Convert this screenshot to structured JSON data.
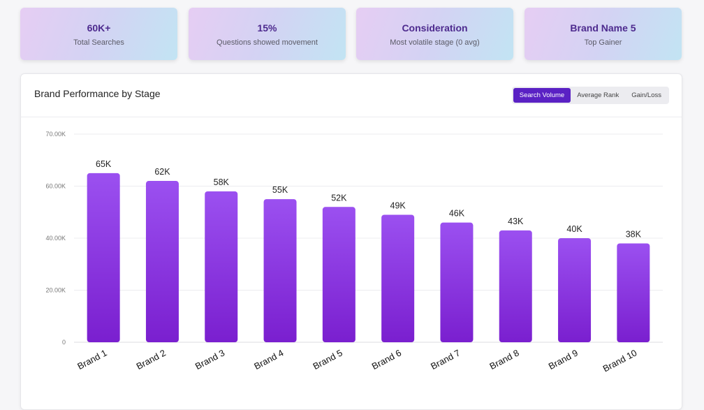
{
  "stats": [
    {
      "value": "60K+",
      "label": "Total Searches"
    },
    {
      "value": "15%",
      "label": "Questions showed movement"
    },
    {
      "value": "Consideration",
      "label": "Most volatile stage (0 avg)"
    },
    {
      "value": "Brand Name 5",
      "label": "Top Gainer"
    }
  ],
  "panel": {
    "title": "Brand Performance by Stage",
    "tabs": [
      {
        "label": "Search Volume",
        "active": true
      },
      {
        "label": "Average Rank",
        "active": false
      },
      {
        "label": "Gain/Loss",
        "active": false
      }
    ]
  },
  "colors": {
    "bar_top": "#9b50f0",
    "bar_bottom": "#7a1fcf",
    "accent": "#5a21c4"
  },
  "chart_data": {
    "type": "bar",
    "title": "Brand Performance by Stage",
    "categories": [
      "Brand 1",
      "Brand 2",
      "Brand 3",
      "Brand 4",
      "Brand 5",
      "Brand 6",
      "Brand 7",
      "Brand 8",
      "Brand 9",
      "Brand 10"
    ],
    "values": [
      65,
      62,
      58,
      55,
      52,
      49,
      46,
      43,
      40,
      38
    ],
    "data_labels": [
      "65K",
      "62K",
      "58K",
      "55K",
      "52K",
      "49K",
      "46K",
      "43K",
      "40K",
      "38K"
    ],
    "ytick_labels": [
      "70.00K",
      "60.00K",
      "40.00K",
      "20.00K",
      "0"
    ],
    "ylim": [
      0,
      80
    ],
    "units": "K",
    "grid": true,
    "xlabel": "",
    "ylabel": ""
  }
}
